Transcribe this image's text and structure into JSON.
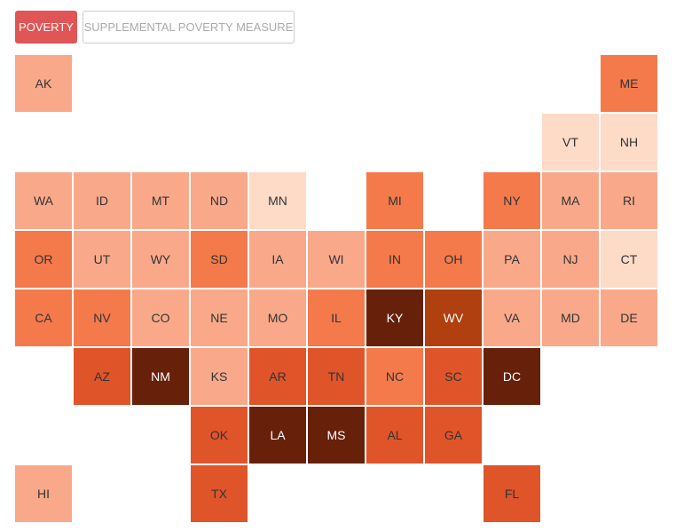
{
  "tabs": [
    {
      "label": "POVERTY",
      "active": true
    },
    {
      "label": "SUPPLEMENTAL POVERTY MEASURE",
      "active": false
    }
  ],
  "map": {
    "rows": [
      [
        {
          "label": "AK",
          "color": "#f9a98a"
        },
        null,
        null,
        null,
        null,
        null,
        null,
        null,
        null,
        null,
        {
          "label": "ME",
          "color": "#f47a4c"
        }
      ],
      [
        null,
        null,
        null,
        null,
        null,
        null,
        null,
        null,
        null,
        {
          "label": "VT",
          "color": "#fddbc7"
        },
        {
          "label": "NH",
          "color": "#fddbc7"
        }
      ],
      [
        {
          "label": "WA",
          "color": "#f9a98a"
        },
        {
          "label": "ID",
          "color": "#f9a98a"
        },
        {
          "label": "MT",
          "color": "#f9a98a"
        },
        {
          "label": "ND",
          "color": "#f9a98a"
        },
        {
          "label": "MN",
          "color": "#fddbc7"
        },
        null,
        {
          "label": "MI",
          "color": "#f47a4c"
        },
        null,
        {
          "label": "NY",
          "color": "#f47a4c"
        },
        {
          "label": "MA",
          "color": "#f9a98a"
        },
        {
          "label": "RI",
          "color": "#f9a98a"
        }
      ],
      [
        {
          "label": "OR",
          "color": "#f47a4c"
        },
        {
          "label": "UT",
          "color": "#f9a98a"
        },
        {
          "label": "WY",
          "color": "#f9a98a"
        },
        {
          "label": "SD",
          "color": "#f47a4c"
        },
        {
          "label": "IA",
          "color": "#f9a98a"
        },
        {
          "label": "WI",
          "color": "#f9a98a"
        },
        {
          "label": "IN",
          "color": "#f47a4c"
        },
        {
          "label": "OH",
          "color": "#f47a4c"
        },
        {
          "label": "PA",
          "color": "#f9a98a"
        },
        {
          "label": "NJ",
          "color": "#f9a98a"
        },
        {
          "label": "CT",
          "color": "#fddbc7"
        }
      ],
      [
        {
          "label": "CA",
          "color": "#f47a4c"
        },
        {
          "label": "NV",
          "color": "#f47a4c"
        },
        {
          "label": "CO",
          "color": "#f9a98a"
        },
        {
          "label": "NE",
          "color": "#f9a98a"
        },
        {
          "label": "MO",
          "color": "#f9a98a"
        },
        {
          "label": "IL",
          "color": "#f47a4c"
        },
        {
          "label": "KY",
          "color": "#67200a"
        },
        {
          "label": "WV",
          "color": "#b0400f"
        },
        {
          "label": "VA",
          "color": "#f9a98a"
        },
        {
          "label": "MD",
          "color": "#f9a98a"
        },
        {
          "label": "DE",
          "color": "#f9a98a"
        }
      ],
      [
        null,
        {
          "label": "AZ",
          "color": "#e0542a"
        },
        {
          "label": "NM",
          "color": "#67200a"
        },
        {
          "label": "KS",
          "color": "#f9a98a"
        },
        {
          "label": "AR",
          "color": "#e0542a"
        },
        {
          "label": "TN",
          "color": "#e0542a"
        },
        {
          "label": "NC",
          "color": "#f47a4c"
        },
        {
          "label": "SC",
          "color": "#e0542a"
        },
        {
          "label": "DC",
          "color": "#67200a"
        },
        null,
        null
      ],
      [
        null,
        null,
        null,
        {
          "label": "OK",
          "color": "#e0542a"
        },
        {
          "label": "LA",
          "color": "#67200a"
        },
        {
          "label": "MS",
          "color": "#67200a"
        },
        {
          "label": "AL",
          "color": "#e0542a"
        },
        {
          "label": "GA",
          "color": "#e0542a"
        },
        null,
        null,
        null
      ],
      [
        {
          "label": "HI",
          "color": "#f9a98a"
        },
        null,
        null,
        {
          "label": "TX",
          "color": "#e0542a"
        },
        null,
        null,
        null,
        null,
        {
          "label": "FL",
          "color": "#e0542a"
        },
        null,
        null
      ]
    ]
  }
}
